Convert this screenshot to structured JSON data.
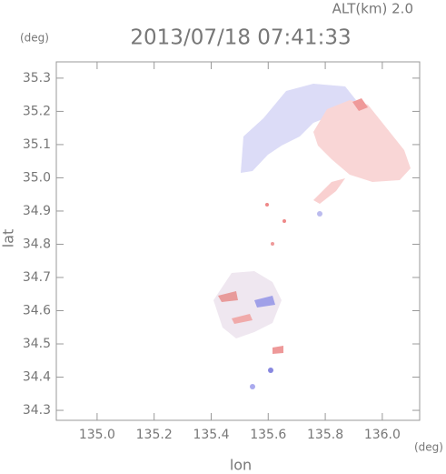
{
  "chart_data": {
    "type": "map",
    "annotation": "ALT(km) 2.0",
    "title": "2013/07/18 07:41:33",
    "y_unit": "(deg)",
    "x_unit": "(deg)",
    "ylabel": "lat",
    "xlabel": "lon",
    "xlim": [
      134.857,
      136.131
    ],
    "ylim": [
      34.27,
      35.349
    ],
    "xticks": [
      {
        "value": 135,
        "label": "135.0"
      },
      135.2,
      135.4,
      135.6,
      135.8,
      {
        "value": 136,
        "label": "136.0"
      }
    ],
    "yticks": [
      34.3,
      34.4,
      34.5,
      34.6,
      34.7,
      34.8,
      34.9,
      {
        "value": 35,
        "label": "35.0"
      },
      35.1,
      35.2,
      35.3
    ]
  }
}
